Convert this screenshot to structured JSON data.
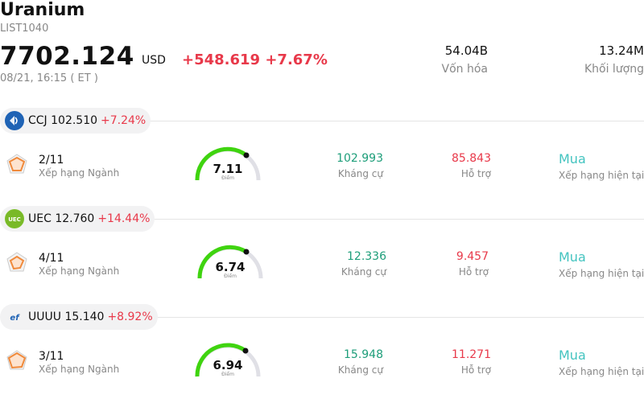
{
  "header": {
    "title": "Uranium",
    "code": "LIST1040",
    "price": "7702.124",
    "currency": "USD",
    "change": "+548.619 +7.67%",
    "time": "08/21, 16:15  ( ET )",
    "market_cap_value": "54.04B",
    "market_cap_label": "Vốn hóa",
    "volume_value": "13.24M",
    "volume_label": "Khối lượng"
  },
  "stocks": [
    {
      "ticker": "CCJ 102.510",
      "change": "+7.24%",
      "rank": "2/11",
      "rank_label": "Xếp hạng Ngành",
      "score": "7.11",
      "score_label": "Điểm",
      "resistance": "102.993",
      "resistance_label": "Kháng cự",
      "support": "85.843",
      "support_label": "Hỗ trợ",
      "rating": "Mua",
      "rating_label": "Xếp hạng hiện tại"
    },
    {
      "ticker": "UEC 12.760",
      "change": "+14.44%",
      "rank": "4/11",
      "rank_label": "Xếp hạng Ngành",
      "score": "6.74",
      "score_label": "Điểm",
      "resistance": "12.336",
      "resistance_label": "Kháng cự",
      "support": "9.457",
      "support_label": "Hỗ trợ",
      "rating": "Mua",
      "rating_label": "Xếp hạng hiện tại"
    },
    {
      "ticker": "UUUU 15.140",
      "change": "+8.92%",
      "rank": "3/11",
      "rank_label": "Xếp hạng Ngành",
      "score": "6.94",
      "score_label": "Điểm",
      "resistance": "15.948",
      "resistance_label": "Kháng cự",
      "support": "11.271",
      "support_label": "Hỗ trợ",
      "rating": "Mua",
      "rating_label": "Xếp hạng hiện tại"
    }
  ],
  "colors": {
    "up": "#e8394a",
    "resistance": "#1e9e7a",
    "support": "#e8394a",
    "buy": "#44c4c0",
    "gauge": "#3fd40f"
  },
  "icons": [
    "ccj-logo-icon",
    "uec-logo-icon",
    "uuuu-logo-icon",
    "rank-radar-icon"
  ]
}
